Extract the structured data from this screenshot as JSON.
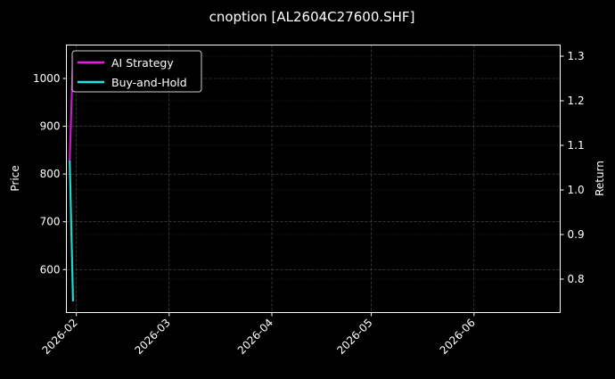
{
  "chart_data": {
    "type": "line",
    "title": "cnoption [AL2604C27600.SHF]",
    "ylabel": "Price",
    "y2label": "Return",
    "xlim": [
      "2026-01-29",
      "2026-06-27"
    ],
    "ylim": [
      510,
      1070
    ],
    "y2lim": [
      0.725,
      1.325
    ],
    "x_ticks": [
      "2026-02",
      "2026-03",
      "2026-04",
      "2026-05",
      "2026-06"
    ],
    "x_tick_dates": [
      "2026-02-01",
      "2026-03-01",
      "2026-04-01",
      "2026-05-01",
      "2026-06-01"
    ],
    "y_ticks": [
      600,
      700,
      800,
      900,
      1000
    ],
    "y2_ticks": [
      0.8,
      0.9,
      1.0,
      1.1,
      1.2,
      1.3
    ],
    "grid": true,
    "legend_position": "top-left",
    "x": [
      "2026-01-30",
      "2026-01-31"
    ],
    "price_series": {
      "axis": "left",
      "color": "#1f8f1f",
      "values": [
        829,
        535
      ]
    },
    "series": [
      {
        "name": "AI Strategy",
        "axis": "right",
        "color": "#e619e6",
        "values": [
          1.066,
          1.3
        ]
      },
      {
        "name": "Buy-and-Hold",
        "axis": "right",
        "color": "#19e6e6",
        "values": [
          1.066,
          0.75
        ]
      }
    ]
  }
}
